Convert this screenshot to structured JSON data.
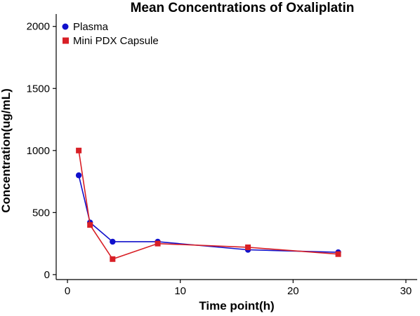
{
  "chart_data": {
    "type": "line",
    "title": "Mean Concentrations of Oxaliplatin",
    "xlabel": "Time point(h)",
    "ylabel": "Concentration(ug/mL)",
    "xlim": [
      -1,
      31
    ],
    "ylim": [
      -40,
      2100
    ],
    "xticks": [
      0,
      10,
      20,
      30
    ],
    "yticks": [
      0,
      500,
      1000,
      1500,
      2000
    ],
    "grid": false,
    "legend_position": "top-left",
    "series": [
      {
        "name": "Plasma",
        "color": "#1010CC",
        "marker": "circle",
        "x": [
          1,
          2,
          4,
          8,
          16,
          24
        ],
        "y": [
          800,
          420,
          265,
          265,
          200,
          180
        ]
      },
      {
        "name": "Mini PDX Capsule",
        "color": "#D81F26",
        "marker": "square",
        "x": [
          1,
          2,
          4,
          8,
          16,
          24
        ],
        "y": [
          1000,
          400,
          125,
          250,
          220,
          165
        ]
      }
    ]
  }
}
